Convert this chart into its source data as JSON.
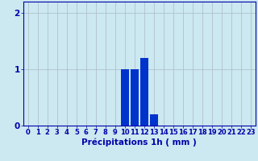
{
  "hours": [
    0,
    1,
    2,
    3,
    4,
    5,
    6,
    7,
    8,
    9,
    10,
    11,
    12,
    13,
    14,
    15,
    16,
    17,
    18,
    19,
    20,
    21,
    22,
    23
  ],
  "values": [
    0,
    0,
    0,
    0,
    0,
    0,
    0,
    0,
    0,
    0,
    1.0,
    1.0,
    1.2,
    0.2,
    0,
    0,
    0,
    0,
    0,
    0,
    0,
    0,
    0,
    0
  ],
  "bar_color": "#0033cc",
  "background_color": "#cce8f0",
  "grid_color": "#aabbc8",
  "axis_color": "#0000aa",
  "xlabel": "Précipitations 1h ( mm )",
  "xlabel_fontsize": 7.5,
  "tick_fontsize": 6,
  "ylabel_ticks": [
    0,
    1,
    2
  ],
  "ylim": [
    0,
    2.2
  ],
  "xlim": [
    -0.5,
    23.5
  ]
}
